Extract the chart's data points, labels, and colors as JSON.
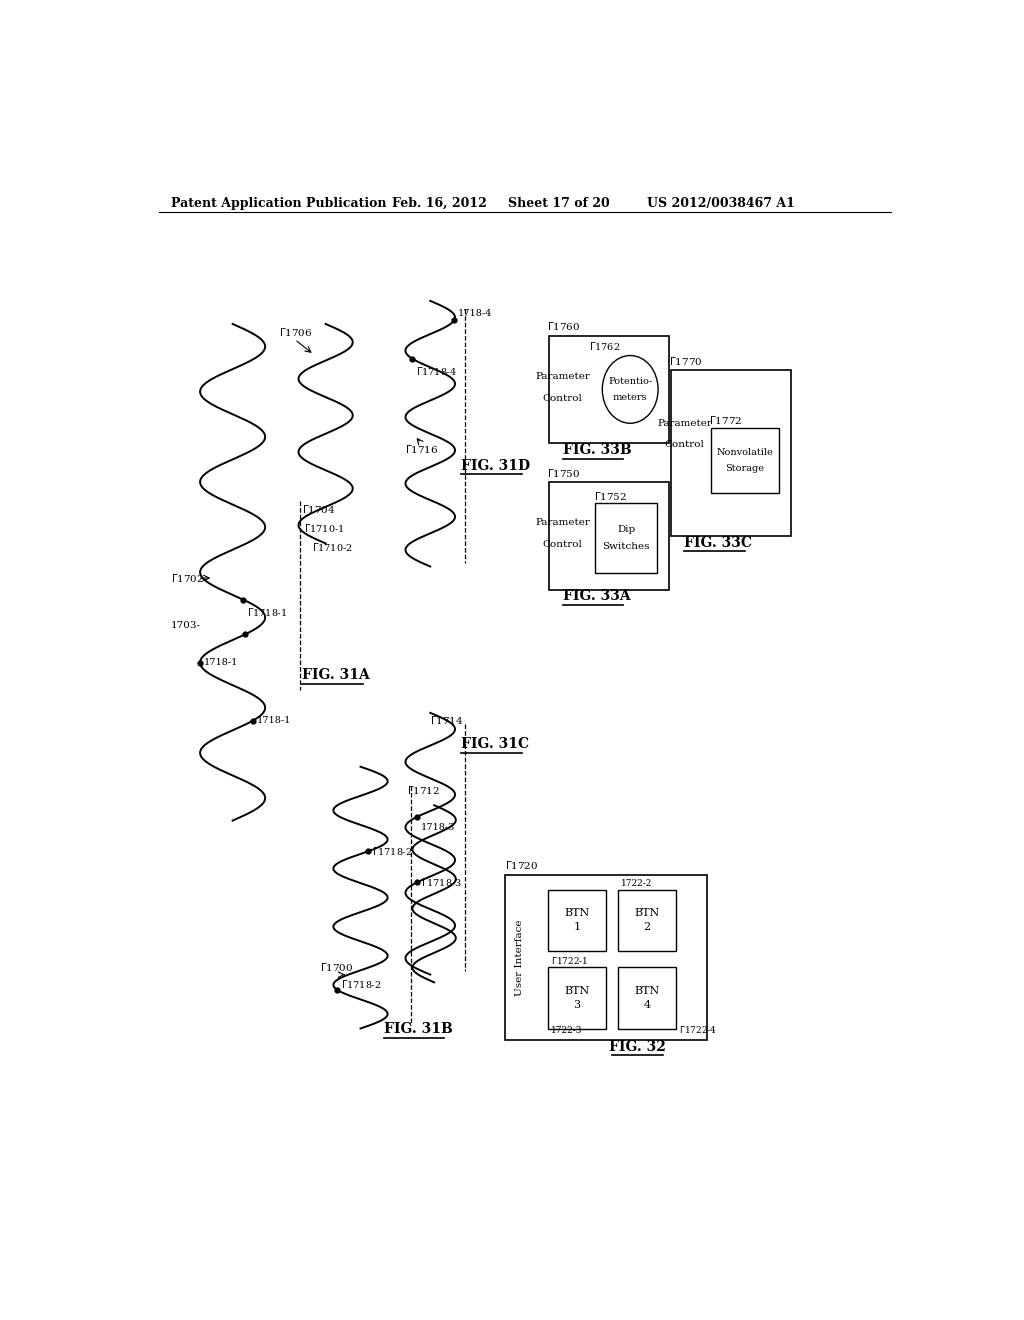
{
  "bg_color": "#ffffff",
  "header_text": "Patent Application Publication",
  "header_date": "Feb. 16, 2012",
  "header_sheet": "Sheet 17 of 20",
  "header_patent": "US 2012/0038467 A1"
}
